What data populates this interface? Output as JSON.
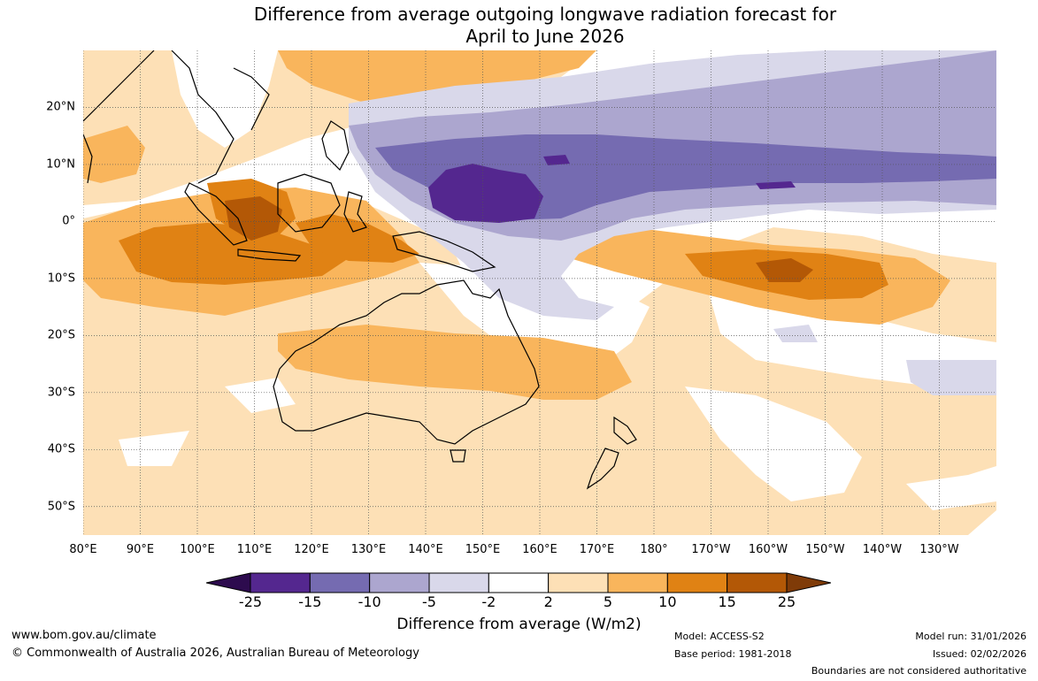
{
  "title": {
    "line1": "Difference from average outgoing longwave radiation forecast for",
    "line2": "April to June 2026"
  },
  "map": {
    "type": "forecast-anomaly-map",
    "variable": "Difference from average outgoing longwave radiation",
    "region": "Indo-Pacific and Australia",
    "lon_range": [
      80,
      240
    ],
    "lat_range": [
      -55,
      30
    ],
    "lat_ticks": [
      {
        "value": 20,
        "label": "20°N"
      },
      {
        "value": 10,
        "label": "10°N"
      },
      {
        "value": 0,
        "label": "0°"
      },
      {
        "value": -10,
        "label": "10°S"
      },
      {
        "value": -20,
        "label": "20°S"
      },
      {
        "value": -30,
        "label": "30°S"
      },
      {
        "value": -40,
        "label": "40°S"
      },
      {
        "value": -50,
        "label": "50°S"
      }
    ],
    "lon_ticks": [
      {
        "value": 80,
        "label": "80°E"
      },
      {
        "value": 90,
        "label": "90°E"
      },
      {
        "value": 100,
        "label": "100°E"
      },
      {
        "value": 110,
        "label": "110°E"
      },
      {
        "value": 120,
        "label": "120°E"
      },
      {
        "value": 130,
        "label": "130°E"
      },
      {
        "value": 140,
        "label": "140°E"
      },
      {
        "value": 150,
        "label": "150°E"
      },
      {
        "value": 160,
        "label": "160°E"
      },
      {
        "value": 170,
        "label": "170°E"
      },
      {
        "value": 180,
        "label": "180°"
      },
      {
        "value": 190,
        "label": "170°W"
      },
      {
        "value": 200,
        "label": "160°W"
      },
      {
        "value": 210,
        "label": "150°W"
      },
      {
        "value": 220,
        "label": "140°W"
      },
      {
        "value": 230,
        "label": "130°W"
      }
    ]
  },
  "colorbar": {
    "label": "Difference from average (W/m2)",
    "ticks": [
      "-25",
      "-15",
      "-10",
      "-5",
      "-2",
      "2",
      "5",
      "10",
      "15",
      "25"
    ],
    "colors": [
      "#2d0b4e",
      "#54278f",
      "#756bb1",
      "#aca6cf",
      "#d9d8ea",
      "#ffffff",
      "#fde0b6",
      "#f9b55c",
      "#e08214",
      "#b35806",
      "#7f3b08"
    ]
  },
  "footer": {
    "site": "www.bom.gov.au/climate",
    "copyright": "© Commonwealth of Australia 2026, Australian Bureau of Meteorology",
    "model": "Model: ACCESS-S2",
    "base_period": "Base period: 1981-2018",
    "model_run": "Model run: 31/01/2026",
    "issued": "Issued: 02/02/2026",
    "boundaries": "Boundaries are not considered authoritative"
  }
}
